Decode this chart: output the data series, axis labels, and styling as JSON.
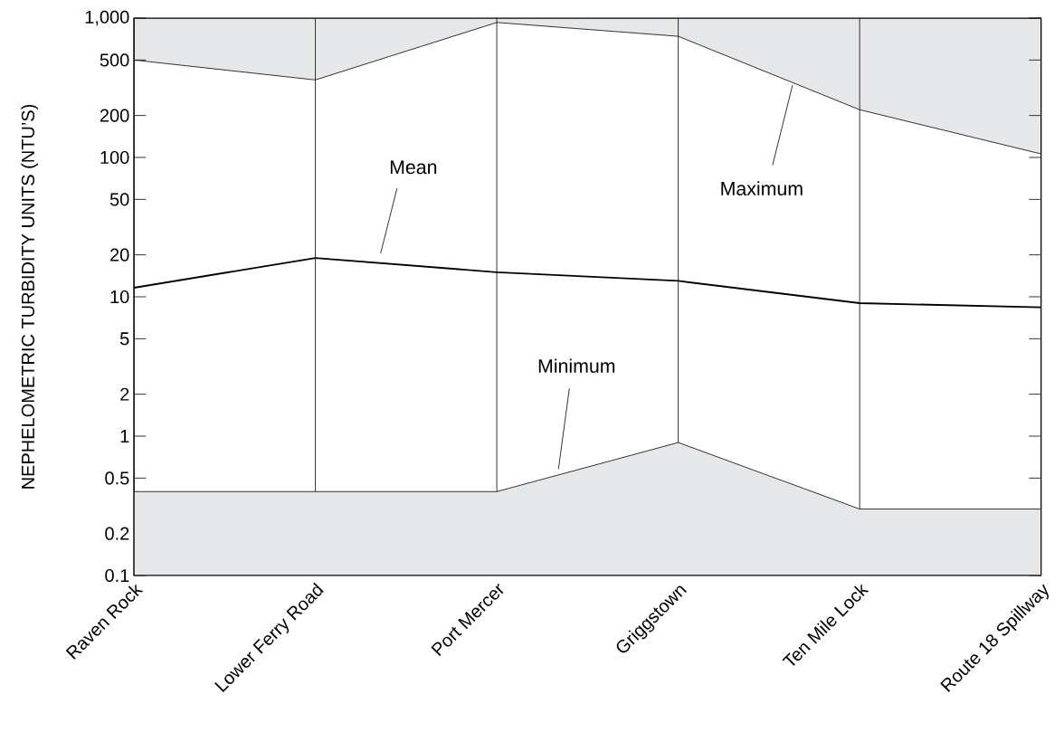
{
  "chart_data": {
    "type": "line",
    "ylabel": "NEPHELOMETRIC TURBIDITY UNITS (NTU’S)",
    "categories": [
      "Raven Rock",
      "Lower Ferry Road",
      "Port Mercer",
      "Griggstown",
      "Ten Mile Lock",
      "Route 18 Spillway"
    ],
    "log": "y",
    "ylim": [
      0.1,
      1000
    ],
    "grid": "x",
    "yticks": [
      0.1,
      0.2,
      0.5,
      1,
      2,
      5,
      10,
      20,
      50,
      100,
      200,
      500,
      {
        "value": 1000,
        "label": "1,000"
      }
    ],
    "series": [
      {
        "name": "Maximum",
        "color": "#000000",
        "values": [
          500,
          360,
          930,
          740,
          220,
          106
        ]
      },
      {
        "name": "Mean",
        "color": "#000000",
        "values": [
          11.6,
          19,
          15,
          13,
          9,
          8.4
        ]
      },
      {
        "name": "Minimum",
        "type": "area",
        "color": "#e6e7e9",
        "values": [
          0.4,
          0.4,
          0.4,
          0.9,
          0.3,
          0.3
        ]
      }
    ]
  }
}
